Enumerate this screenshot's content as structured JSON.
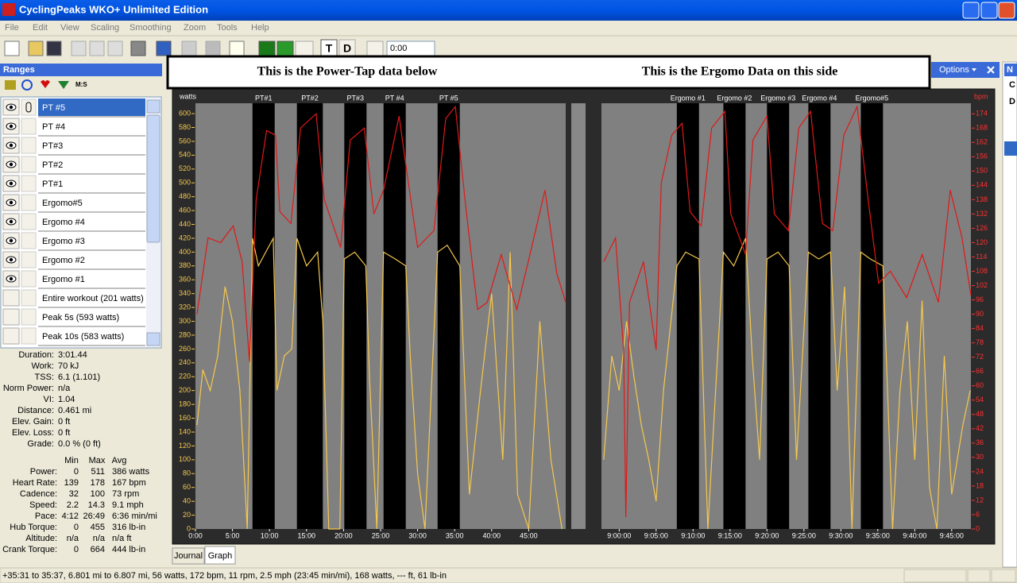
{
  "window": {
    "title": "CyclingPeaks WKO+ Unlimited Edition",
    "menu": [
      "File",
      "Edit",
      "View",
      "Scaling",
      "Smoothing",
      "Zoom",
      "Tools",
      "Help"
    ]
  },
  "toolbar": {
    "buttons": [
      "T",
      "D"
    ],
    "time": "0:00"
  },
  "ranges": {
    "title": "Ranges",
    "tool_label": "M:S",
    "items": [
      {
        "label": "PT #5",
        "visible": true,
        "selected": true
      },
      {
        "label": "PT #4",
        "visible": true
      },
      {
        "label": "PT#3",
        "visible": true
      },
      {
        "label": "PT#2",
        "visible": true
      },
      {
        "label": "PT#1",
        "visible": true
      },
      {
        "label": "Ergomo#5",
        "visible": true
      },
      {
        "label": "Ergomo #4",
        "visible": true
      },
      {
        "label": "Ergomo #3",
        "visible": true
      },
      {
        "label": "Ergomo #2",
        "visible": true
      },
      {
        "label": "Ergomo #1",
        "visible": true
      },
      {
        "label": "Entire workout (201 watts)",
        "visible": false
      },
      {
        "label": "Peak 5s (593 watts)",
        "visible": false
      },
      {
        "label": "Peak 10s (583 watts)",
        "visible": false
      }
    ]
  },
  "stats": [
    {
      "label": "Duration:",
      "value": "3:01.44"
    },
    {
      "label": "Work:",
      "value": "70 kJ"
    },
    {
      "label": "TSS:",
      "value": "6.1 (1.101)"
    },
    {
      "label": "Norm Power:",
      "value": "n/a"
    },
    {
      "label": "VI:",
      "value": "1.04"
    },
    {
      "label": "Distance:",
      "value": "0.461 mi"
    },
    {
      "label": "Elev. Gain:",
      "value": "0 ft"
    },
    {
      "label": "Elev. Loss:",
      "value": "0 ft"
    },
    {
      "label": "Grade:",
      "value": "0.0 % (0 ft)"
    }
  ],
  "summary": {
    "headers": [
      "Min",
      "Max",
      "Avg"
    ],
    "rows": [
      [
        "Power:",
        "0",
        "511",
        "386 watts"
      ],
      [
        "Heart Rate:",
        "139",
        "178",
        "167 bpm"
      ],
      [
        "Cadence:",
        "32",
        "100",
        "73 rpm"
      ],
      [
        "Speed:",
        "2.2",
        "14.3",
        "9.1 mph"
      ],
      [
        "Pace:",
        "4:12",
        "26:49",
        "6:36 min/mi"
      ],
      [
        "Hub Torque:",
        "0",
        "455",
        "316 lb-in"
      ],
      [
        "Altitude:",
        "n/a",
        "n/a",
        "n/a ft"
      ],
      [
        "Crank Torque:",
        "0",
        "664",
        "444 lb-in"
      ]
    ]
  },
  "banner": {
    "left": "This is the Power-Tap data below",
    "right": "This is the Ergomo Data on this side"
  },
  "options": "Options",
  "side_panel": [
    "N",
    "C",
    "D"
  ],
  "chart_data": [
    {
      "type": "line",
      "y_label": "watts",
      "xlim": [
        0,
        50
      ],
      "xticks": [
        {
          "value": 0,
          "label": "0:00"
        },
        {
          "value": 5,
          "label": "5:00"
        },
        {
          "value": 10,
          "label": "10:00"
        },
        {
          "value": 15,
          "label": "15:00"
        },
        {
          "value": 20,
          "label": "20:00"
        },
        {
          "value": 25,
          "label": "25:00"
        },
        {
          "value": 30,
          "label": "30:00"
        },
        {
          "value": 35,
          "label": "35:00"
        },
        {
          "value": 40,
          "label": "40:00"
        },
        {
          "value": 45,
          "label": "45:00"
        }
      ],
      "ylim": [
        0,
        615
      ],
      "yticks": [
        0,
        20,
        40,
        60,
        80,
        100,
        120,
        140,
        160,
        180,
        200,
        220,
        240,
        260,
        280,
        300,
        320,
        340,
        360,
        380,
        400,
        420,
        440,
        460,
        480,
        500,
        520,
        540,
        560,
        580,
        600
      ],
      "y2lim": [
        0,
        178.4
      ],
      "intervals": [
        {
          "label": "PT#1",
          "start": 7.7,
          "end": 10.7
        },
        {
          "label": "PT#2",
          "start": 13.7,
          "end": 17.2
        },
        {
          "label": "PT#3",
          "start": 20.1,
          "end": 23.1
        },
        {
          "label": "PT #4",
          "start": 25.4,
          "end": 28.4
        },
        {
          "label": "PT #5",
          "start": 32.7,
          "end": 35.7
        }
      ],
      "series": [
        {
          "color": "#f5c84c",
          "x": [
            0.2,
            1,
            2,
            3,
            4,
            5,
            6,
            7,
            7.7,
            8.5,
            9.5,
            10.5,
            11,
            12,
            13,
            13.7,
            15,
            16.5,
            17.2,
            18,
            19.5,
            20.1,
            21.5,
            23,
            23.5,
            24.5,
            25.4,
            27,
            28.4,
            29,
            30,
            31,
            32.7,
            34,
            35.7,
            37,
            38.5,
            40,
            41.5,
            42.5,
            43.5,
            45,
            46.5,
            48,
            49.5
          ],
          "values": [
            150,
            230,
            200,
            250,
            350,
            300,
            200,
            0,
            420,
            380,
            400,
            420,
            200,
            250,
            260,
            420,
            380,
            400,
            300,
            0,
            0,
            390,
            400,
            380,
            220,
            0,
            400,
            390,
            380,
            250,
            80,
            0,
            400,
            410,
            380,
            50,
            200,
            340,
            100,
            400,
            50,
            0,
            300,
            100,
            0
          ]
        },
        {
          "color": "#e01818",
          "axis": "y2",
          "x": [
            0.2,
            1.7,
            3.4,
            5.1,
            6.3,
            7.3,
            8.2,
            9.6,
            10.8,
            11.4,
            12.9,
            14.2,
            16.3,
            17.4,
            19.6,
            20.9,
            22.8,
            24.1,
            25.4,
            27.5,
            28.9,
            30,
            32.2,
            33.8,
            35.1,
            36.5,
            38.1,
            39.4,
            41.3,
            43.4,
            45.4,
            47.2,
            48.8,
            50
          ],
          "values": [
            90,
            122,
            120,
            127,
            112,
            70,
            138,
            167,
            165,
            133,
            128,
            168,
            174,
            138,
            118,
            163,
            168,
            132,
            142,
            173,
            142,
            118,
            125,
            172,
            177,
            135,
            92,
            95,
            115,
            92,
            118,
            142,
            107,
            95
          ]
        }
      ]
    },
    {
      "type": "line",
      "y2_label": "bpm",
      "xlim": [
        537.6,
        587.6
      ],
      "xticks": [
        {
          "value": 540,
          "label": "9:00:00"
        },
        {
          "value": 545,
          "label": "9:05:00"
        },
        {
          "value": 550,
          "label": "9:10:00"
        },
        {
          "value": 555,
          "label": "9:15:00"
        },
        {
          "value": 560,
          "label": "9:20:00"
        },
        {
          "value": 565,
          "label": "9:25:00"
        },
        {
          "value": 570,
          "label": "9:30:00"
        },
        {
          "value": 575,
          "label": "9:35:00"
        },
        {
          "value": 580,
          "label": "9:40:00"
        },
        {
          "value": 585,
          "label": "9:45:00"
        }
      ],
      "ylim": [
        0,
        615
      ],
      "y2lim": [
        0,
        178.4
      ],
      "y2ticks": [
        0,
        6,
        12,
        18,
        24,
        30,
        36,
        42,
        48,
        54,
        60,
        66,
        72,
        78,
        84,
        90,
        96,
        102,
        108,
        114,
        120,
        126,
        132,
        138,
        144,
        150,
        156,
        162,
        168,
        174
      ],
      "intervals": [
        {
          "label": "Ergomo #1",
          "start": 547.8,
          "end": 550.8
        },
        {
          "label": "Ergomo #2",
          "start": 554.1,
          "end": 557.1
        },
        {
          "label": "Ergomo #3",
          "start": 560,
          "end": 563
        },
        {
          "label": "Ergomo #4",
          "start": 565.6,
          "end": 568.6
        },
        {
          "label": "Ergomo#5",
          "start": 572.7,
          "end": 575.7
        }
      ],
      "series": [
        {
          "color": "#f5c84c",
          "x": [
            537.9,
            539,
            540,
            541,
            542,
            543,
            544,
            545,
            546,
            547.8,
            549,
            550.8,
            552,
            554.1,
            555.5,
            557.1,
            558,
            559,
            560,
            561.5,
            563,
            564,
            565.6,
            567,
            568.6,
            569.5,
            570.5,
            571.5,
            572.7,
            574,
            575.7,
            577,
            578,
            579,
            580,
            581,
            582,
            583,
            584,
            585,
            586.5,
            587.5
          ],
          "values": [
            100,
            250,
            200,
            300,
            220,
            150,
            100,
            40,
            200,
            380,
            400,
            390,
            0,
            400,
            380,
            420,
            250,
            100,
            390,
            400,
            380,
            100,
            400,
            390,
            400,
            200,
            350,
            0,
            400,
            390,
            380,
            0,
            200,
            300,
            100,
            330,
            60,
            0,
            250,
            50,
            150,
            200
          ]
        },
        {
          "color": "#e01818",
          "axis": "y2",
          "x": [
            537.9,
            539.5,
            540.6,
            540.9,
            541.4,
            543.3,
            545,
            545.7,
            547.1,
            548.5,
            549.6,
            551.1,
            552.5,
            554.3,
            555.1,
            557.1,
            558.1,
            560,
            561,
            562.9,
            564.3,
            565.9,
            567.5,
            568.9,
            570.4,
            572.2,
            573.7,
            575.1,
            576.7,
            578.9,
            581,
            583.2,
            584.8,
            586.4,
            587.6
          ],
          "values": [
            112,
            122,
            75,
            5,
            95,
            112,
            75,
            145,
            165,
            170,
            133,
            127,
            168,
            175,
            132,
            115,
            163,
            173,
            132,
            125,
            168,
            175,
            128,
            125,
            165,
            177,
            138,
            103,
            108,
            97,
            115,
            95,
            142,
            122,
            98
          ]
        }
      ]
    }
  ],
  "tabs": [
    "Journal",
    "Graph"
  ],
  "status": "+35:31 to 35:37, 6.801 mi to 6.807 mi, 56 watts, 172 bpm, 11 rpm, 2.5 mph (23:45 min/mi), 168 watts, --- ft, 61 lb-in"
}
